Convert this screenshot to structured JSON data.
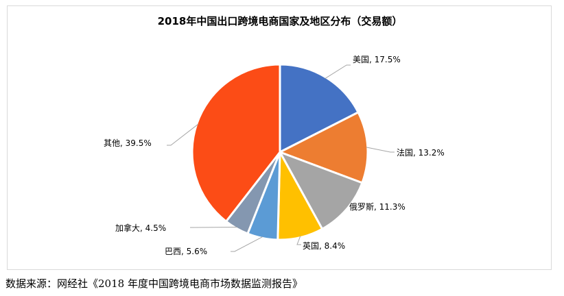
{
  "chart_data": {
    "type": "pie",
    "title": "2018年中国出口跨境电商国家及地区分布（交易额）",
    "slices": [
      {
        "name": "美国",
        "value": 17.5,
        "label": "美国, 17.5%",
        "color": "#4472c4"
      },
      {
        "name": "法国",
        "value": 13.2,
        "label": "法国, 13.2%",
        "color": "#ed7d31"
      },
      {
        "name": "俄罗斯",
        "value": 11.3,
        "label": "俄罗斯, 11.3%",
        "color": "#a5a5a5"
      },
      {
        "name": "英国",
        "value": 8.4,
        "label": "英国, 8.4%",
        "color": "#ffc000"
      },
      {
        "name": "巴西",
        "value": 5.6,
        "label": "巴西, 5.6%",
        "color": "#5b9bd5"
      },
      {
        "name": "加拿大",
        "value": 4.5,
        "label": "加拿大, 4.5%",
        "color": "#8497b0"
      },
      {
        "name": "其他",
        "value": 39.5,
        "label": "其他, 39.5%",
        "color": "#fc4c16"
      }
    ],
    "legend": "none"
  },
  "source_note": "数据来源：网经社《2018 年度中国跨境电商市场数据监测报告》"
}
